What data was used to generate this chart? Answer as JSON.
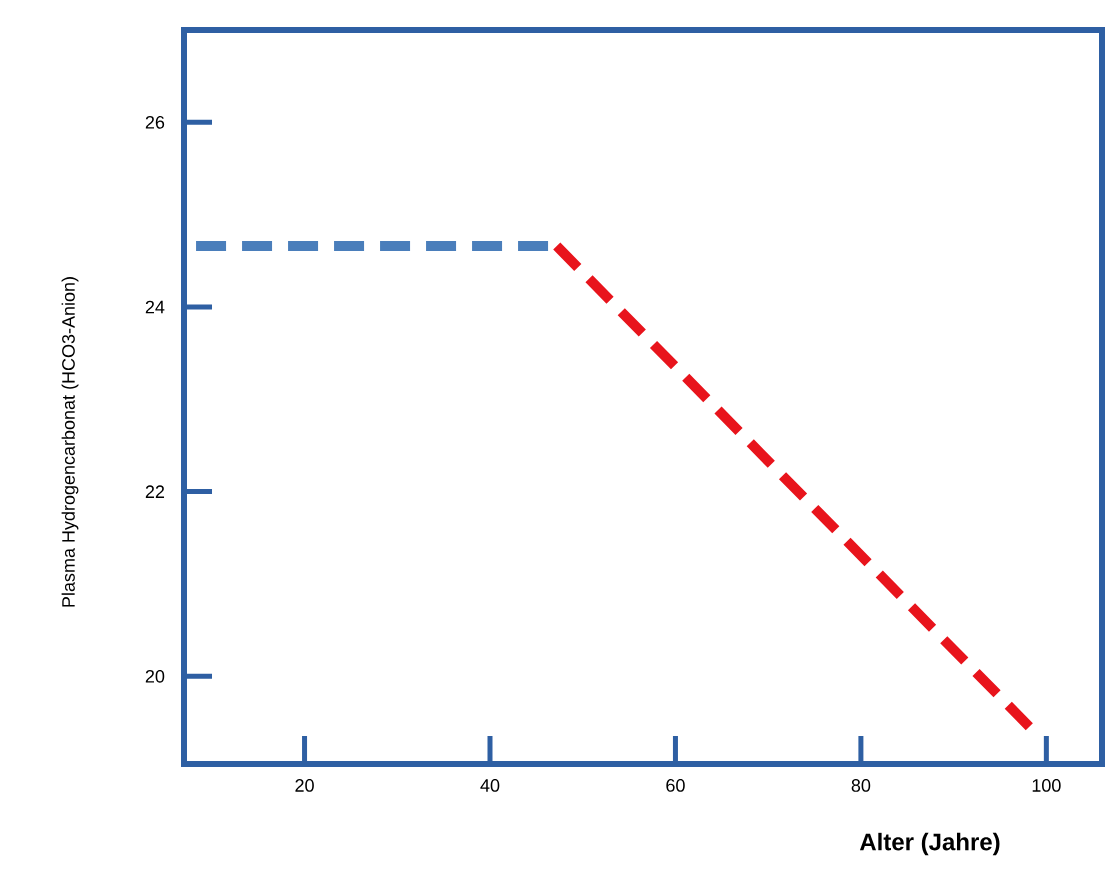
{
  "chart_data": {
    "type": "line",
    "xlabel": "Alter (Jahre)",
    "ylabel": "Plasma Hydrogencarbonat (HCO3-Anion)",
    "series": [
      {
        "x": [
          8.3,
          47.2
        ],
        "values": [
          24.66,
          24.66
        ],
        "color": "#4a7ebb"
      },
      {
        "x": [
          47.2,
          98.5
        ],
        "values": [
          24.66,
          19.42
        ],
        "color": "#e8141c"
      }
    ],
    "xlim": [
      7,
      106
    ],
    "ylim": [
      19.05,
      27
    ],
    "xticks": [
      20,
      40,
      60,
      80,
      100
    ],
    "yticks": [
      20,
      22,
      24,
      26
    ],
    "line_style": "dashed",
    "grid": false,
    "marker": "none"
  }
}
